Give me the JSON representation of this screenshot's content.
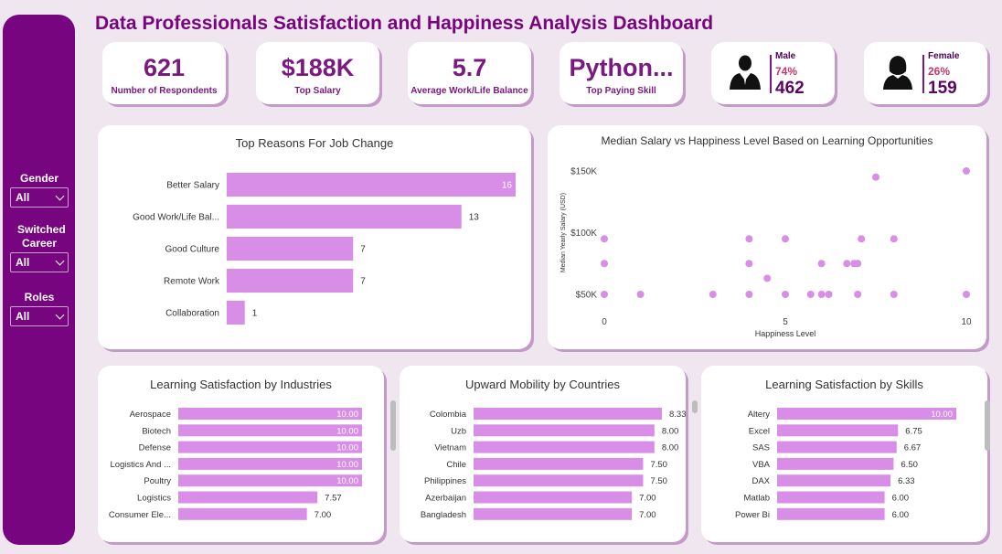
{
  "title": "Data Professionals Satisfaction and Happiness Analysis Dashboard",
  "slicers": [
    {
      "label": "Gender",
      "value": "All"
    },
    {
      "label": "Switched Career",
      "value": "All"
    },
    {
      "label": "Roles",
      "value": "All"
    }
  ],
  "kpis": [
    {
      "value": "621",
      "label": "Number of Respondents"
    },
    {
      "value": "$188K",
      "label": "Top Salary"
    },
    {
      "value": "5.7",
      "label": "Average Work/Life Balance"
    },
    {
      "value": "Python...",
      "label": "Top Paying Skill"
    }
  ],
  "gender": {
    "male": {
      "label": "Male",
      "pct": "74%",
      "count": "462"
    },
    "female": {
      "label": "Female",
      "pct": "26%",
      "count": "159"
    }
  },
  "colors": {
    "accent": "#780580",
    "bar": "#d88ee6",
    "title": "#78057e"
  },
  "chart_data": [
    {
      "type": "bar",
      "orientation": "horizontal",
      "title": "Top Reasons For Job Change",
      "categories": [
        "Better Salary",
        "Good Work/Life Bal...",
        "Good Culture",
        "Remote Work",
        "Collaboration"
      ],
      "values": [
        16,
        13,
        7,
        7,
        1
      ],
      "xlim": [
        0,
        16
      ]
    },
    {
      "type": "scatter",
      "title": "Median Salary vs Happiness Level Based on Learning Opportunities",
      "xlabel": "Happiness Level",
      "ylabel": "Median Yearly Salary (USD)",
      "xlim": [
        0,
        10
      ],
      "ylim": [
        50000,
        150000
      ],
      "xticks": [
        "0",
        "5",
        "10"
      ],
      "yticks": [
        "$150K",
        "$100K",
        "$50K"
      ],
      "points": [
        [
          0,
          95000
        ],
        [
          0,
          75000
        ],
        [
          0,
          50000
        ],
        [
          1,
          50000
        ],
        [
          3,
          50000
        ],
        [
          4,
          95000
        ],
        [
          4,
          75000
        ],
        [
          4,
          50000
        ],
        [
          4.5,
          63000
        ],
        [
          5,
          95000
        ],
        [
          5,
          50000
        ],
        [
          5.7,
          50000
        ],
        [
          6,
          50000
        ],
        [
          6.2,
          50000
        ],
        [
          6,
          75000
        ],
        [
          6.7,
          75000
        ],
        [
          6.9,
          75000
        ],
        [
          7,
          75000
        ],
        [
          7,
          50000
        ],
        [
          7.5,
          145000
        ],
        [
          7.1,
          95000
        ],
        [
          8,
          95000
        ],
        [
          8,
          50000
        ],
        [
          10,
          150000
        ],
        [
          10,
          50000
        ]
      ]
    },
    {
      "type": "bar",
      "orientation": "horizontal",
      "title": "Learning Satisfaction by Industries",
      "categories": [
        "Aerospace",
        "Biotech",
        "Defense",
        "Logistics And ...",
        "Poultry",
        "Logistics",
        "Consumer Ele..."
      ],
      "values": [
        10.0,
        10.0,
        10.0,
        10.0,
        10.0,
        7.57,
        7.0
      ],
      "labels": [
        "10.00",
        "10.00",
        "10.00",
        "10.00",
        "10.00",
        "7.57",
        "7.00"
      ],
      "xlim": [
        0,
        10
      ]
    },
    {
      "type": "bar",
      "orientation": "horizontal",
      "title": "Upward Mobility by Countries",
      "categories": [
        "Colombia",
        "Uzb",
        "Vietnam",
        "Chile",
        "Philippines",
        "Azerbaijan",
        "Bangladesh"
      ],
      "values": [
        8.33,
        8.0,
        8.0,
        7.5,
        7.5,
        7.0,
        7.0
      ],
      "labels": [
        "8.33",
        "8.00",
        "8.00",
        "7.50",
        "7.50",
        "7.00",
        "7.00"
      ],
      "xlim": [
        0,
        8.33
      ]
    },
    {
      "type": "bar",
      "orientation": "horizontal",
      "title": "Learning Satisfaction by Skills",
      "categories": [
        "Altery",
        "Excel",
        "SAS",
        "VBA",
        "DAX",
        "Matlab",
        "Power Bi"
      ],
      "values": [
        10.0,
        6.75,
        6.67,
        6.5,
        6.33,
        6.0,
        6.0
      ],
      "labels": [
        "10.00",
        "6.75",
        "6.67",
        "6.50",
        "6.33",
        "6.00",
        "6.00"
      ],
      "xlim": [
        0,
        10
      ]
    }
  ]
}
